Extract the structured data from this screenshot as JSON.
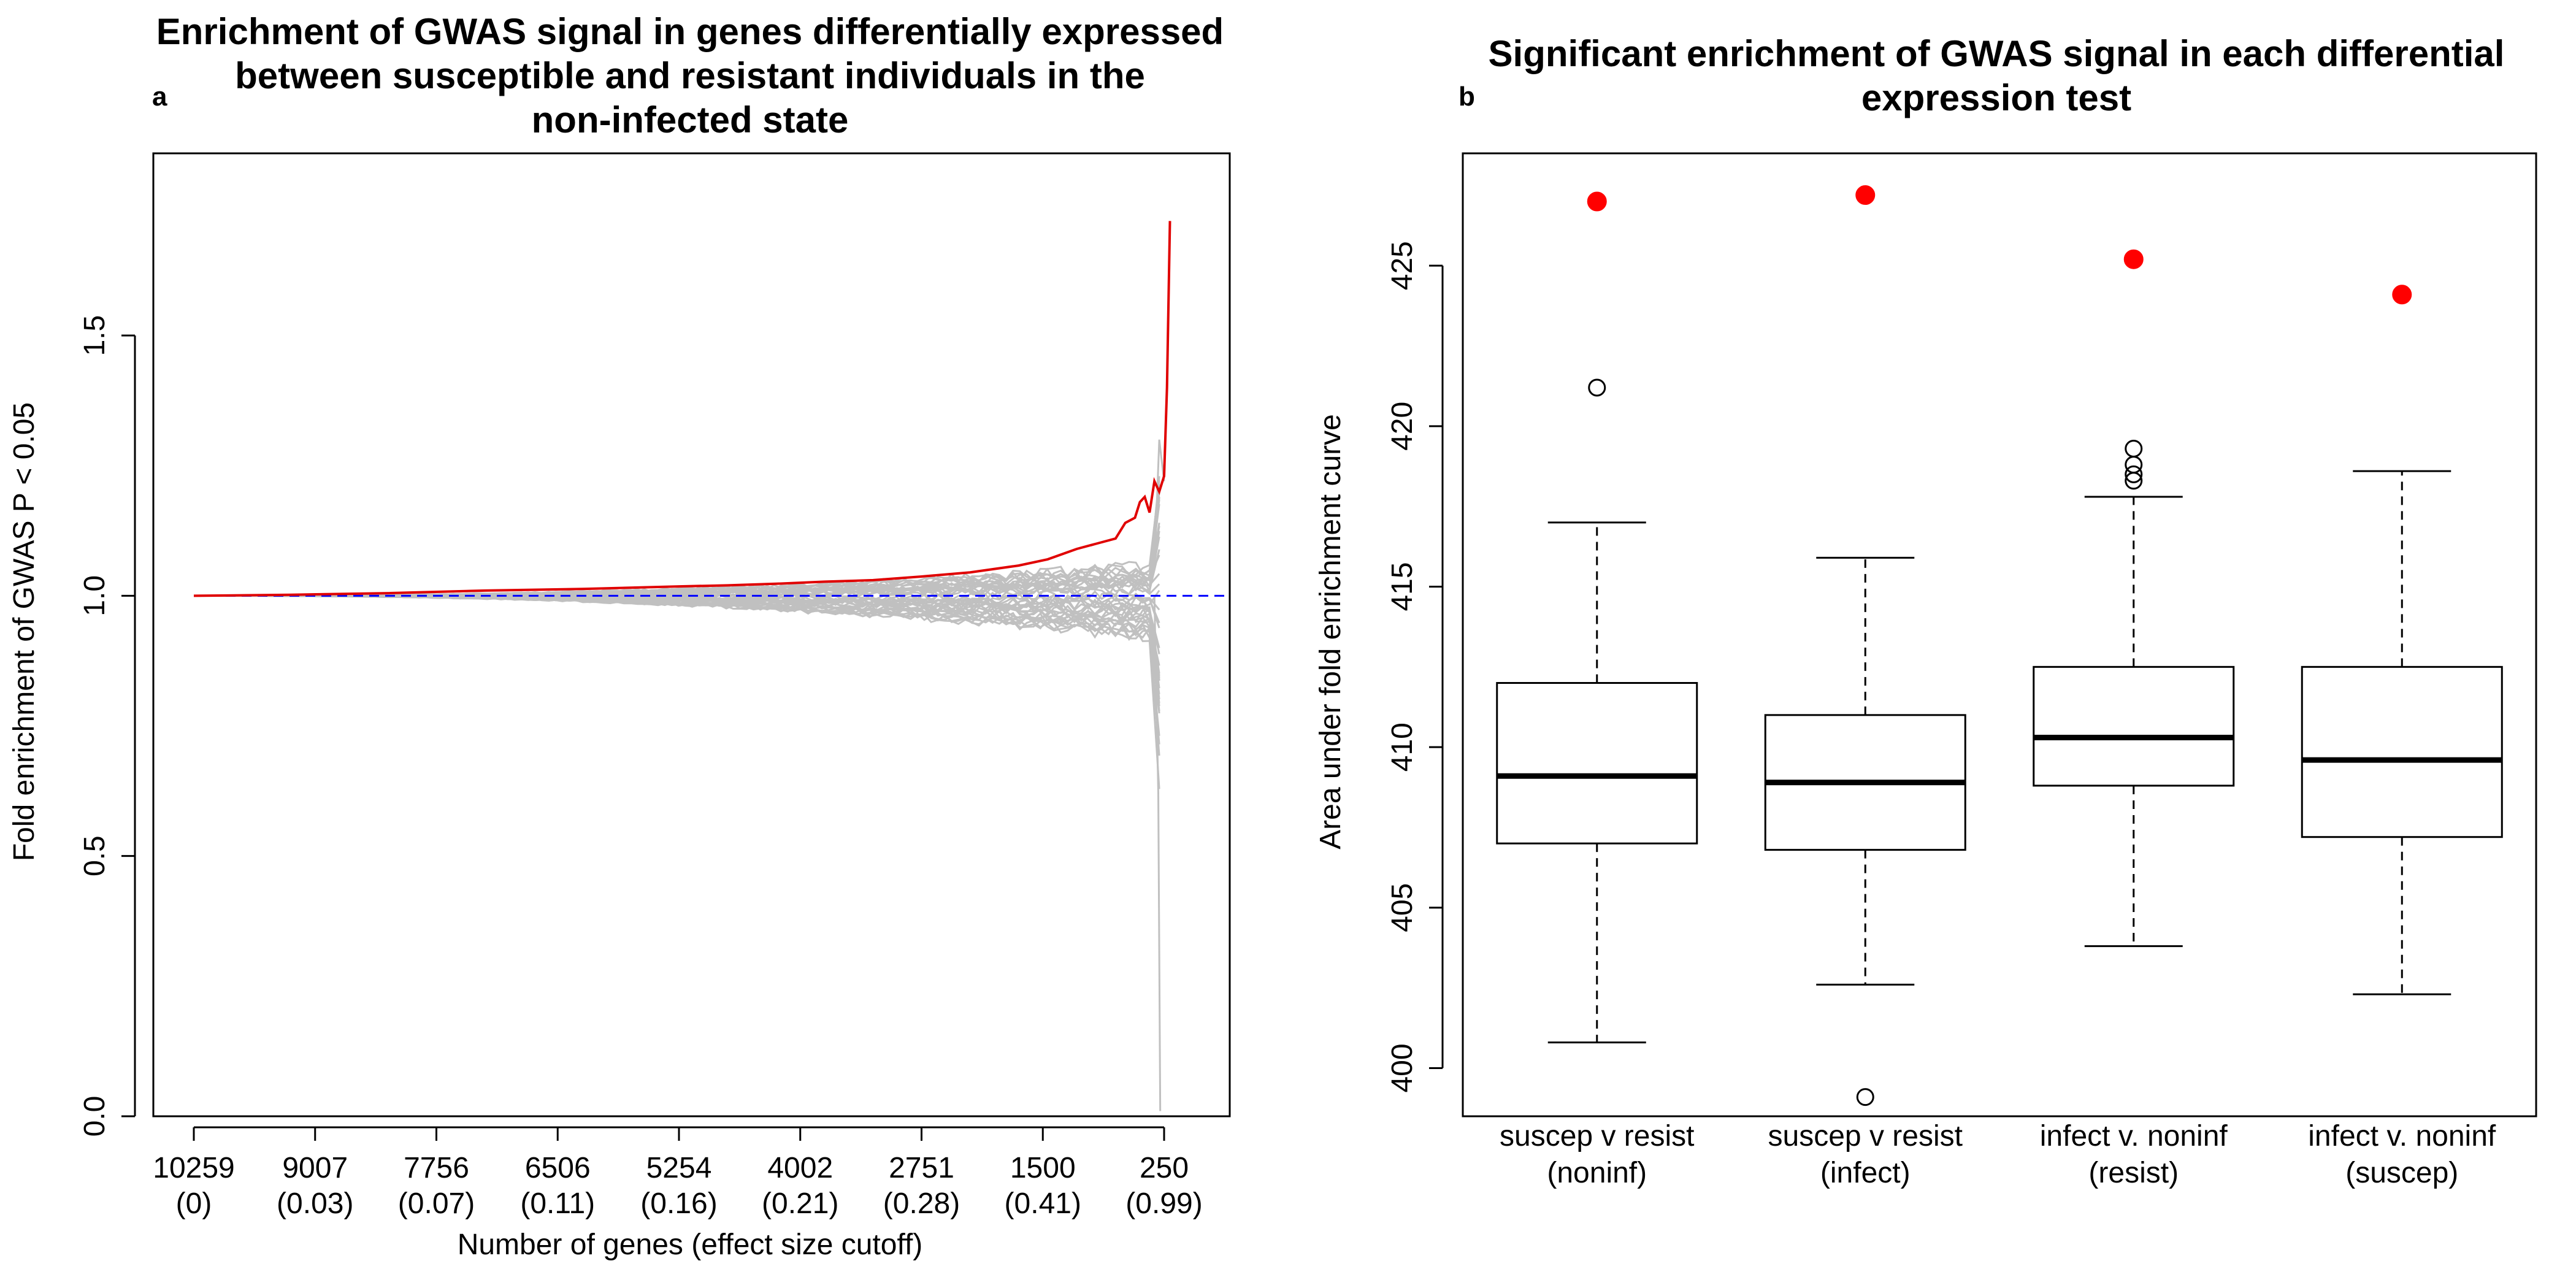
{
  "chart_data": [
    {
      "type": "line",
      "panel_label": "a",
      "title_lines": [
        "Enrichment of GWAS signal in genes differentially expressed",
        "between susceptible and resistant individuals in the",
        "non-infected state"
      ],
      "xlabel": "Number of genes (effect size cutoff)",
      "ylabel": "Fold enrichment of GWAS P < 0.05",
      "ylim": [
        0,
        1.85
      ],
      "yticks": [
        "0.0",
        "0.5",
        "1.0",
        "1.5"
      ],
      "ytick_values": [
        0,
        0.5,
        1.0,
        1.5
      ],
      "xticks": [
        {
          "genes": "10259",
          "cutoff": "(0)"
        },
        {
          "genes": "9007",
          "cutoff": "(0.03)"
        },
        {
          "genes": "7756",
          "cutoff": "(0.07)"
        },
        {
          "genes": "6506",
          "cutoff": "(0.11)"
        },
        {
          "genes": "5254",
          "cutoff": "(0.16)"
        },
        {
          "genes": "4002",
          "cutoff": "(0.21)"
        },
        {
          "genes": "2751",
          "cutoff": "(0.28)"
        },
        {
          "genes": "1500",
          "cutoff": "(0.41)"
        },
        {
          "genes": "250",
          "cutoff": "(0.99)"
        }
      ],
      "reference_line": {
        "y": 1.0,
        "color": "#0000ff",
        "style": "dashed"
      },
      "observed_series": {
        "color": "#e00000",
        "x_frac": [
          0,
          0.1,
          0.2,
          0.3,
          0.4,
          0.5,
          0.55,
          0.6,
          0.65,
          0.7,
          0.75,
          0.8,
          0.85,
          0.88,
          0.91,
          0.93,
          0.95,
          0.96,
          0.97,
          0.975,
          0.98,
          0.985,
          0.99,
          0.995,
          1.0,
          1.003,
          1.006
        ],
        "values": [
          1.0,
          1.002,
          1.005,
          1.01,
          1.013,
          1.018,
          1.02,
          1.023,
          1.027,
          1.03,
          1.037,
          1.045,
          1.058,
          1.07,
          1.09,
          1.1,
          1.11,
          1.14,
          1.15,
          1.18,
          1.19,
          1.16,
          1.22,
          1.2,
          1.23,
          1.4,
          1.72
        ]
      },
      "permuted_series_color": "#c0c0c0",
      "permuted_series_count": 40
    },
    {
      "type": "box",
      "panel_label": "b",
      "title_lines": [
        "Significant enrichment of GWAS signal in each differential",
        "expression test"
      ],
      "xlabel": "",
      "ylabel": "Area under fold enrichment curve",
      "ylim": [
        398.5,
        428.5
      ],
      "yticks": [
        "400",
        "405",
        "410",
        "415",
        "420",
        "425"
      ],
      "ytick_values": [
        400,
        405,
        410,
        415,
        420,
        425
      ],
      "categories": [
        {
          "line1": "suscep v resist",
          "line2": "(noninf)"
        },
        {
          "line1": "suscep v resist",
          "line2": "(infect)"
        },
        {
          "line1": "infect v. noninf",
          "line2": "(resist)"
        },
        {
          "line1": "infect v. noninf",
          "line2": "(suscep)"
        }
      ],
      "boxes": [
        {
          "whisker_low": 400.8,
          "q1": 407.0,
          "median": 409.1,
          "q3": 412.0,
          "whisker_high": 417.0,
          "outliers": [
            421.2
          ],
          "observed": 427.0
        },
        {
          "whisker_low": 402.6,
          "q1": 406.8,
          "median": 408.9,
          "q3": 411.0,
          "whisker_high": 415.9,
          "outliers": [
            399.1
          ],
          "observed": 427.2
        },
        {
          "whisker_low": 403.8,
          "q1": 408.8,
          "median": 410.3,
          "q3": 412.5,
          "whisker_high": 417.8,
          "outliers": [
            418.3,
            418.5,
            418.8,
            419.3
          ],
          "observed": 425.2
        },
        {
          "whisker_low": 402.3,
          "q1": 407.2,
          "median": 409.6,
          "q3": 412.5,
          "whisker_high": 418.6,
          "outliers": [],
          "observed": 424.1
        }
      ],
      "observed_color": "#ff0000"
    }
  ]
}
